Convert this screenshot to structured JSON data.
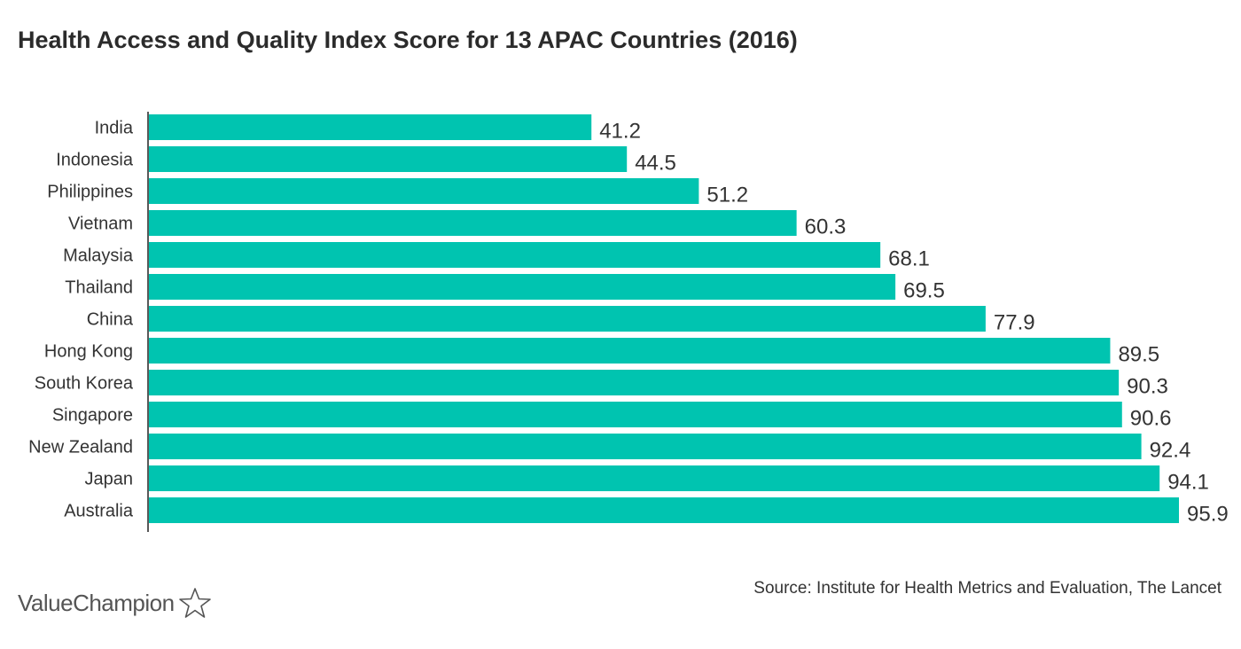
{
  "chart_data": {
    "type": "bar",
    "orientation": "horizontal",
    "title": "Health Access and Quality Index Score for 13 APAC Countries (2016)",
    "categories": [
      "India",
      "Indonesia",
      "Philippines",
      "Vietnam",
      "Malaysia",
      "Thailand",
      "China",
      "Hong Kong",
      "South Korea",
      "Singapore",
      "New Zealand",
      "Japan",
      "Australia"
    ],
    "values": [
      41.2,
      44.5,
      51.2,
      60.3,
      68.1,
      69.5,
      77.9,
      89.5,
      90.3,
      90.6,
      92.4,
      94.1,
      95.9
    ],
    "value_labels": [
      "41.2",
      "44.5",
      "51.2",
      "60.3",
      "68.1",
      "69.5",
      "77.9",
      "89.5",
      "90.3",
      "90.6",
      "92.4",
      "94.1",
      "95.9"
    ],
    "xlabel": "",
    "ylabel": "",
    "xlim": [
      0,
      95.9
    ],
    "grid": false,
    "bar_color": "#00c4b0"
  },
  "footer": {
    "source": "Source: Institute for Health Metrics and Evaluation, The Lancet",
    "brand": "ValueChampion"
  },
  "icons": {
    "brand_star": "star-outline-icon"
  }
}
